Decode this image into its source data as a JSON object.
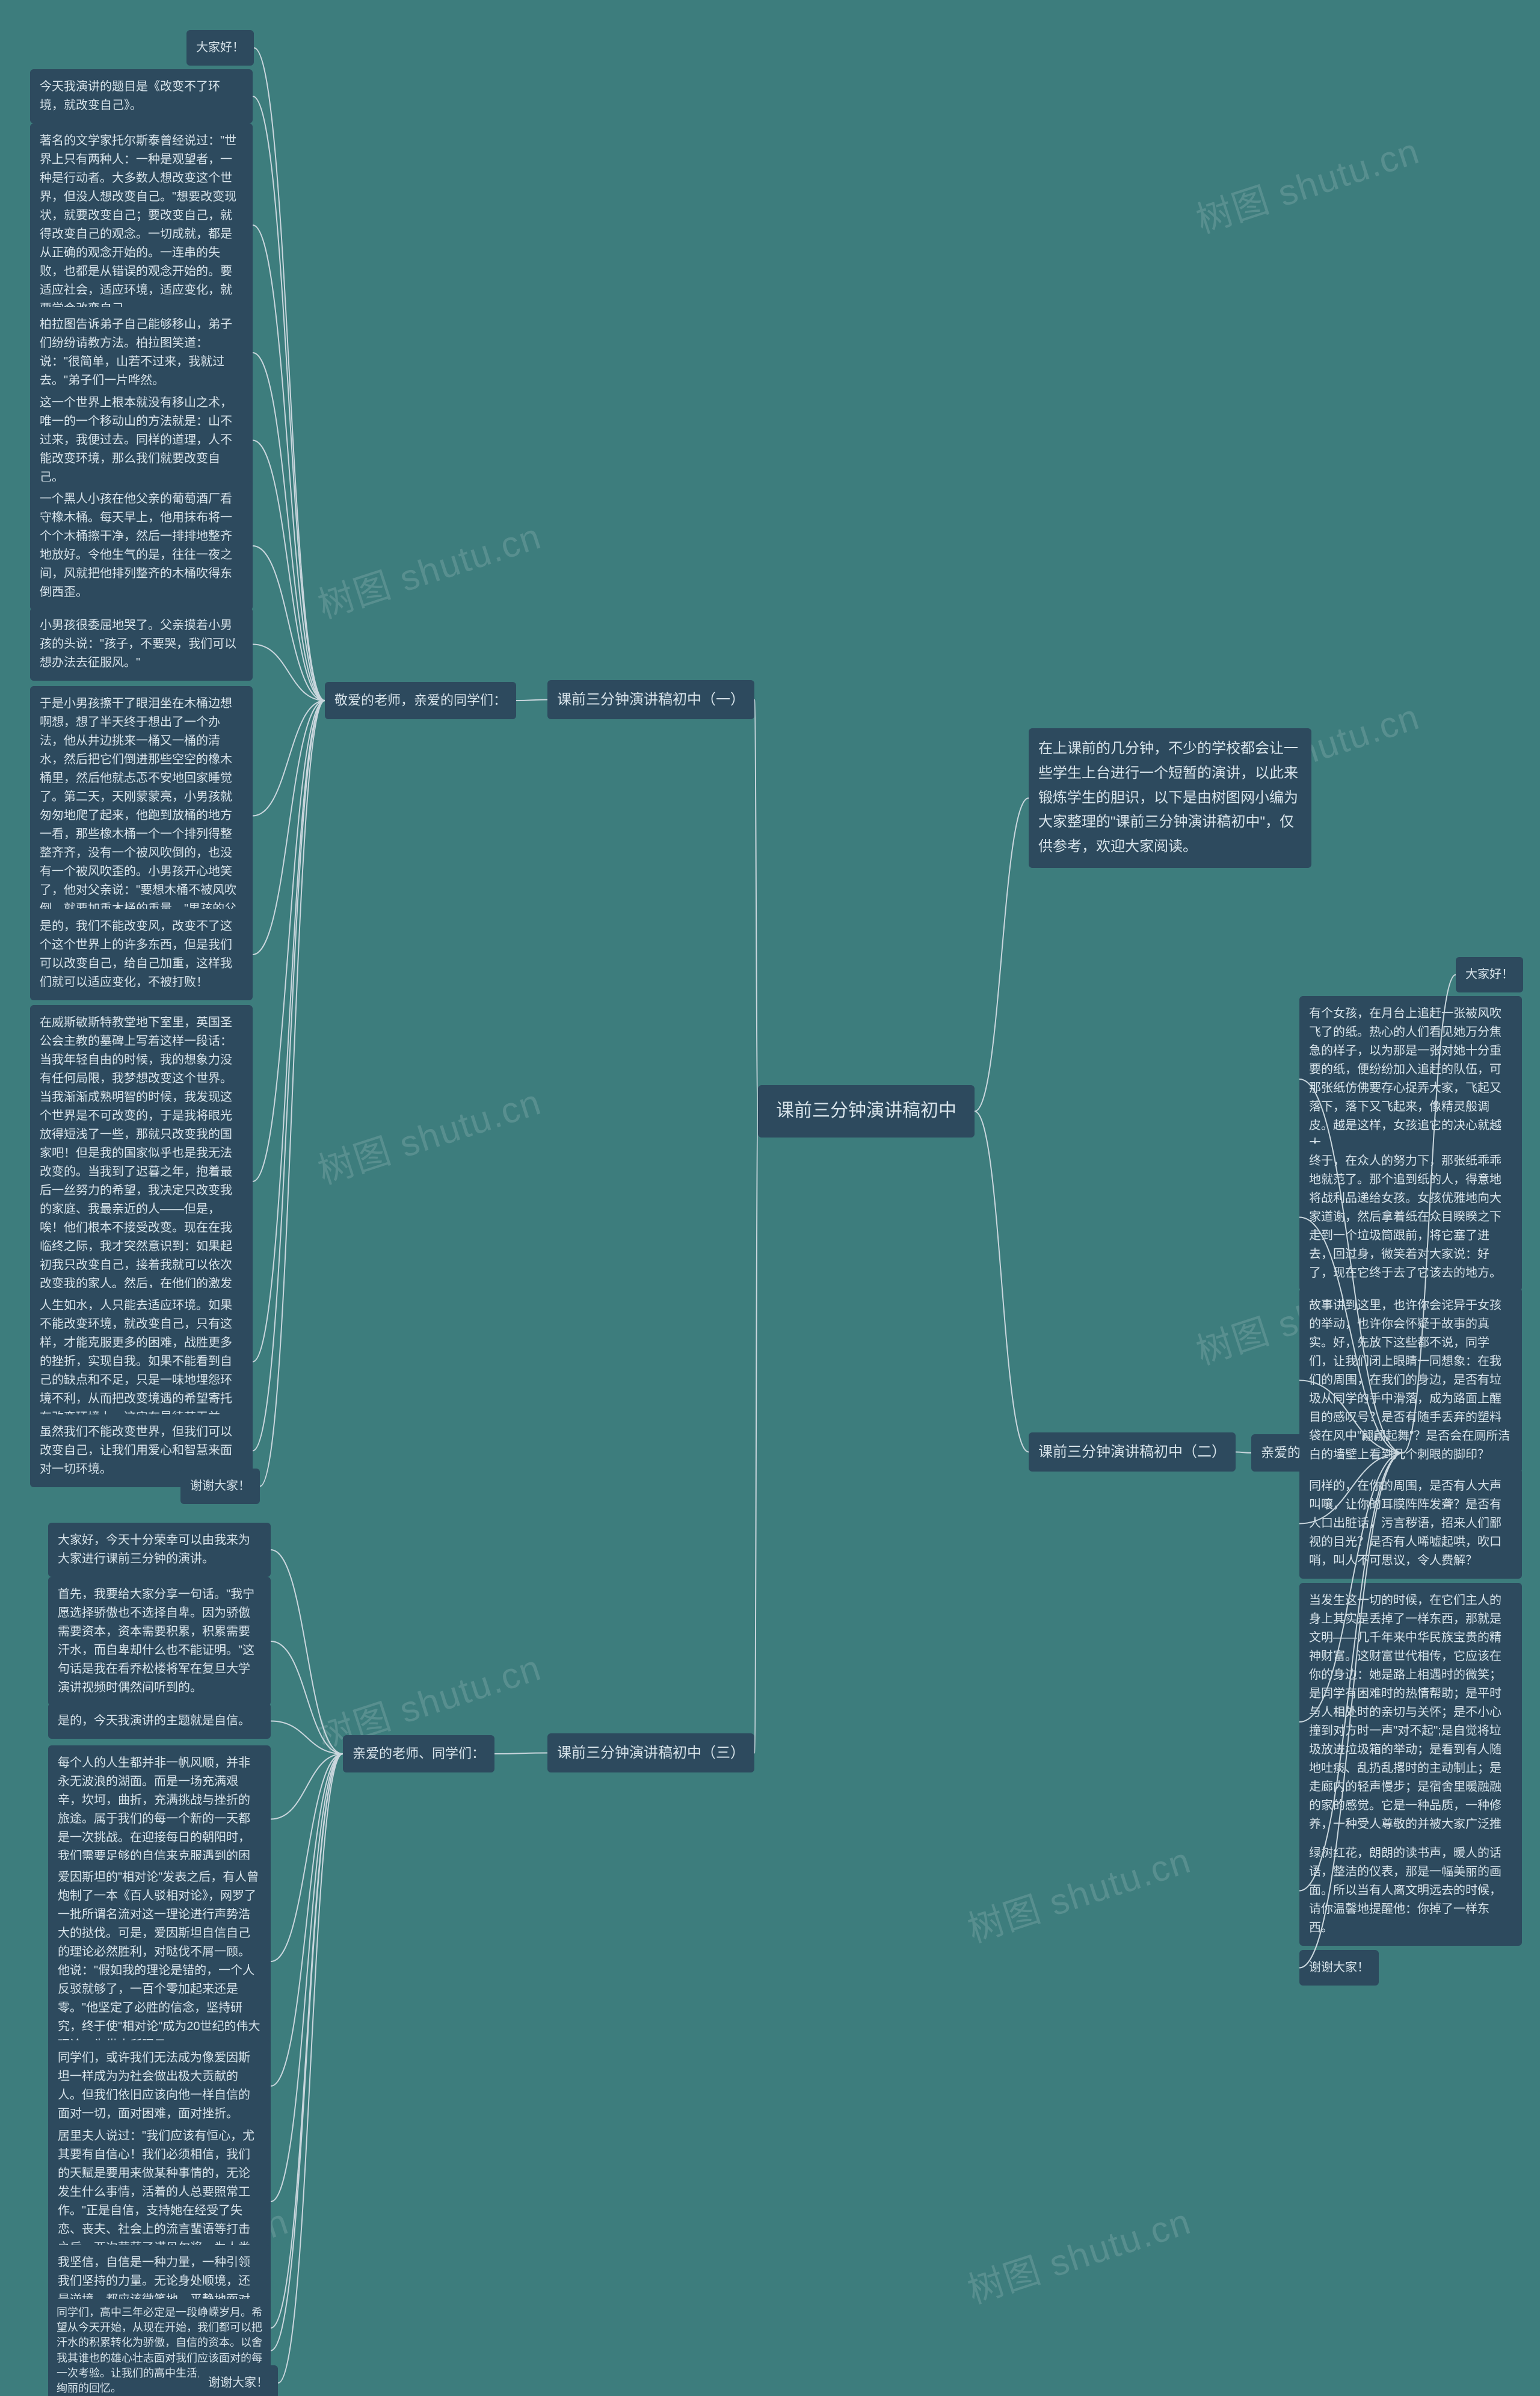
{
  "type": "mindmap",
  "background_color": "#3d7d7d",
  "node_bg_color": "#2d4a5e",
  "node_text_color": "#d7e3ea",
  "connector_color": "#c9d6dd",
  "connector_width": 2,
  "title_fontsize": 30,
  "section_fontsize": 24,
  "leaf_fontsize": 20,
  "watermark_text": "树图 shutu.cn",
  "watermark_color": "rgba(255,255,255,0.14)",
  "watermark_fontsize": 60,
  "center": "课前三分钟演讲稿初中",
  "intro": "在上课前的几分钟，不少的学校都会让一些学生上台进行一个短暂的演讲，以此来锻炼学生的胆识，以下是由树图网小编为大家整理的\"课前三分钟演讲稿初中\"，仅供参考，欢迎大家阅读。",
  "sections": {
    "s1": {
      "title": "课前三分钟演讲稿初中（一）",
      "sub": "敬爱的老师，亲爱的同学们：",
      "leaves": [
        "大家好！",
        "今天我演讲的题目是《改变不了环境，就改变自己》。",
        "著名的文学家托尔斯泰曾经说过：\"世界上只有两种人：一种是观望者，一种是行动者。大多数人想改变这个世界，但没人想改变自己。\"想要改变现状，就要改变自己；要改变自己，就得改变自己的观念。一切成就，都是从正确的观念开始的。一连串的失败，也都是从错误的观念开始的。要适应社会，适应环境，适应变化，就要学会改变自己。",
        "柏拉图告诉弟子自己能够移山，弟子们纷纷请教方法。柏拉图笑道：说：\"很简单，山若不过来，我就过去。\"弟子们一片哗然。",
        "这一个世界上根本就没有移山之术，唯一的一个移动山的方法就是：山不过来，我便过去。同样的道理，人不能改变环境，那么我们就要改变自己。",
        "一个黑人小孩在他父亲的葡萄酒厂看守橡木桶。每天早上，他用抹布将一个个木桶擦干净，然后一排排地整齐地放好。令他生气的是，往往一夜之间，风就把他排列整齐的木桶吹得东倒西歪。",
        "小男孩很委屈地哭了。父亲摸着小男孩的头说：\"孩子，不要哭，我们可以想办法去征服风。\"",
        "于是小男孩擦干了眼泪坐在木桶边想啊想，想了半天终于想出了一个办法，他从井边挑来一桶又一桶的清水，然后把它们倒进那些空空的橡木桶里，然后他就忐忑不安地回家睡觉了。第二天，天刚蒙蒙亮，小男孩就匆匆地爬了起来，他跑到放桶的地方一看，那些橡木桶一个一个排列得整整齐齐，没有一个被风吹倒的，也没有一个被风吹歪的。小男孩开心地笑了，他对父亲说：\"要想木桶不被风吹倒，就要加重木桶的重量。\"男孩的父亲赞许地微笑了。",
        "是的，我们不能改变风，改变不了这个这个世界上的许多东西，但是我们可以改变自己，给自己加重，这样我们就可以适应变化，不被打败！",
        "在威斯敏斯特教堂地下室里，英国圣公会主教的墓碑上写着这样一段话：当我年轻自由的时候，我的想象力没有任何局限，我梦想改变这个世界。当我渐渐成熟明智的时候，我发现这个世界是不可改变的，于是我将眼光放得短浅了一些，那就只改变我的国家吧！但是我的国家似乎也是我无法改变的。当我到了迟暮之年，抱着最后一丝努力的希望，我决定只改变我的家庭、我最亲近的人——但是，唉！他们根本不接受改变。现在在我临终之际，我才突然意识到：如果起初我只改变自己，接着我就可以依次改变我的家人。然后，在他们的激发和鼓励下，我也许就能改变我的国家。再接下来，谁又知道呢，也许我连整个世界都可以改变。",
        "人生如水，人只能去适应环境。如果不能改变环境，就改变自己，只有这样，才能克服更多的困难，战胜更多的挫折，实现自我。如果不能看到自己的缺点和不足，只是一味地埋怨环境不利，从而把改变境遇的希望寄托在改变环境上，这实在是徒劳无益。",
        "虽然我们不能改变世界，但我们可以改变自己，让我们用爱心和智慧来面对一切环境。",
        "谢谢大家！"
      ]
    },
    "s2": {
      "title": "课前三分钟演讲稿初中（二）",
      "sub": "亲爱的老师、同学们：",
      "leaves": [
        "大家好！",
        "有个女孩，在月台上追赶一张被风吹飞了的纸。热心的人们看见她万分焦急的样子，以为那是一张对她十分重要的纸，便纷纷加入追赶的队伍，可那张纸仿佛要存心捉弄大家，飞起又落下，落下又飞起来，像精灵般调皮。越是这样，女孩追它的决心就越大。",
        "终于，在众人的努力下，那张纸乖乖地就范了。那个追到纸的人，得意地将战利品递给女孩。女孩优雅地向大家道谢，然后拿着纸在众目睽睽之下走到一个垃圾筒跟前，将它塞了进去，回过身，微笑着对大家说：好了，现在它终于去了它该去的地方。",
        "故事讲到这里，也许你会诧异于女孩的举动，也许你会怀疑于故事的真实。好，先放下这些都不说，同学们，让我们闭上眼睛一同想象：在我们的周围，在我们的身边，是否有垃圾从同学的手中滑落，成为路面上醒目的感叹号？是否有随手丢弃的塑料袋在风中\"翩翩起舞\"？是否会在厕所洁白的墙壁上看到几个刺眼的脚印？",
        "同样的，在你的周围，是否有人大声叫嚷，让你的耳膜阵阵发聋？是否有人口出脏话，污言秽语，招来人们鄙视的目光？是否有人唏嘘起哄，吹口哨，叫人不可思议，令人费解？",
        "当发生这一切的时候，在它们主人的身上其实是丢掉了一样东西，那就是文明——几千年来中华民族宝贵的精神财富。这财富世代相传，它应该在你的身边：她是路上相遇时的微笑；是同学有困难时的热情帮助；是平时与人相处时的亲切与关怀；是不小心撞到对方时一声\"对不起\";是自觉将垃圾放进垃圾箱的举动；是看到有人随地吐痰、乱扔乱撂时的主动制止；是走廊内的轻声慢步；是宿舍里暖融融的家的感觉。它是一种品质，一种修养，一种受人尊敬的并被大家广泛推崇的行为。",
        "绿树红花，朗朗的读书声，暖人的话语，整洁的仪表，那是一幅美丽的画面。所以当有人离文明远去的时候，请你温馨地提醒他：你掉了一样东西。",
        "谢谢大家！"
      ]
    },
    "s3": {
      "title": "课前三分钟演讲稿初中（三）",
      "sub": "亲爱的老师、同学们：",
      "leaves": [
        "大家好，今天十分荣幸可以由我来为大家进行课前三分钟的演讲。",
        "首先，我要给大家分享一句话。\"我宁愿选择骄傲也不选择自卑。因为骄傲需要资本，资本需要积累，积累需要汗水，而自卑却什么也不能证明。\"这句话是我在看乔松楼将军在复旦大学演讲视频时偶然间听到的。",
        "是的，今天我演讲的主题就是自信。",
        "每个人的人生都并非一帆风顺，并非永无波浪的湖面。而是一场充满艰辛，坎坷，曲折，充满挑战与挫折的旅途。属于我们的每一个新的一天都是一次挑战。在迎接每日的朝阳时，我们需要足够的自信来克服遇到的困难。",
        "爱因斯坦的\"相对论\"发表之后，有人曾炮制了一本《百人驳相对论》，网罗了一批所谓名流对这一理论进行声势浩大的挞伐。可是，爱因斯坦自信自己的理论必然胜利，对哒伐不屑一顾。他说：\"假如我的理论是错的，一个人反驳就够了，一百个零加起来还是零。\"他坚定了必胜的信念，坚持研究，终于使\"相对论\"成为20世纪的伟大理论，为世人所瞩目。",
        "同学们，或许我们无法成为像爱因斯坦一样成为为社会做出极大贡献的人。但我们依旧应该向他一样自信的面对一切，面对困难，面对挫折。",
        "居里夫人说过：\"我们应该有恒心，尤其要有自信心！我们必须相信，我们的天赋是要用来做某种事情的，无论发生什么事情，活着的人总要照常工作。\"正是自信，支持她在经受了失恋、丧夫、社会上的流言蜚语等打击之后，两次荣获了诺贝尔奖，为人类的科学事业做出了巨大的贡献。",
        "我坚信，自信是一种力量，一种引领我们坚持的力量。无论身处顺境，还是逆境，都应该微笑地，平静地面对人生，有了自信，生活便有了希望。\"天生我材必有用\"，哪怕命运之神一次次把我们捉弄，只要拥有自信，拥有一颗自强不息、积极向上的心，成功迟早会属于你的。",
        "同学们，高中三年必定是一段峥嵘岁月。希望从今天开始，从现在开始，我们都可以把汗水的积累转化为骄傲，自信的资本。以舍我其谁也的雄心壮志面对我们应该面对的每一次考验。让我们的高中生活成为人生光彩绚丽的回忆。",
        "谢谢大家！"
      ]
    }
  }
}
